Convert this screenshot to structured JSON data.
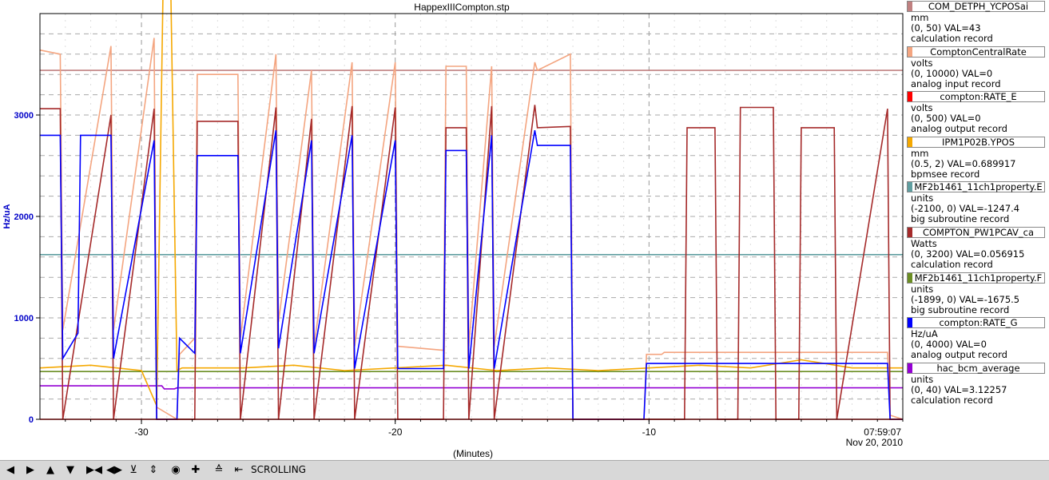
{
  "chart_data": {
    "type": "line",
    "title": "HappexIIICompton.stp",
    "xlabel": "(Minutes)",
    "ylabel": "Hz/uA",
    "xlim": [
      -34,
      0
    ],
    "ylim": [
      0,
      4000
    ],
    "x_ticks": [
      -30,
      -20,
      -10
    ],
    "y_ticks": [
      0,
      1000,
      2000,
      3000
    ],
    "time_label": "07:59:07",
    "date_label": "Nov 20, 2010",
    "grid": true,
    "legend_position": "right",
    "series": [
      {
        "name": "COM_DETPH_YCPOSai",
        "color": "#c08080",
        "y_range": [
          0,
          50
        ],
        "value": "43",
        "x": [
          -34,
          0
        ],
        "y": [
          43,
          43
        ]
      },
      {
        "name": "ComptonCentralRate",
        "color": "#f4a580",
        "y_range": [
          0,
          10000
        ],
        "value": "0",
        "x": [
          -34,
          -33.2,
          -33.1,
          -31.2,
          -31.1,
          -29.5,
          -29.4,
          -28.6,
          -28.5,
          -27.9,
          -27.8,
          -26.2,
          -26.1,
          -24.7,
          -24.6,
          -23.3,
          -23.2,
          -21.7,
          -21.6,
          -20,
          -19.9,
          -18.1,
          -18,
          -17.2,
          -17.1,
          -16.2,
          -16.1,
          -14.5,
          -14.4,
          -13.1,
          -13,
          -10.2,
          -10.1,
          -9.5,
          -9.4,
          -0.6,
          -0.5,
          0
        ],
        "y": [
          9100,
          9000,
          2200,
          9200,
          2200,
          9400,
          300,
          0,
          1600,
          2000,
          8500,
          8500,
          2000,
          9000,
          2400,
          8600,
          1800,
          8800,
          1800,
          8800,
          1800,
          1700,
          8700,
          8700,
          1800,
          8700,
          1800,
          8800,
          8600,
          9000,
          0,
          0,
          1600,
          1600,
          1650,
          1650,
          100,
          0
        ]
      },
      {
        "name": "compton:RATE_E",
        "color": "#ff0000",
        "y_range": [
          0,
          500
        ],
        "value": "0",
        "x": [
          -34,
          0
        ],
        "y": [
          0,
          0
        ]
      },
      {
        "name": "IPM1P02B.YPOS",
        "color": "#f5a800",
        "y_range": [
          0.5,
          2
        ],
        "value": "0.689917",
        "x": [
          -34,
          -32,
          -30,
          -29.4,
          -29,
          -28.6,
          -28.4,
          -26,
          -24,
          -22,
          -20,
          -18,
          -16,
          -14,
          -12,
          -10,
          -8,
          -6,
          -4,
          -2,
          0
        ],
        "y": [
          0.69,
          0.7,
          0.68,
          0.55,
          3.0,
          0.68,
          0.69,
          0.69,
          0.7,
          0.68,
          0.69,
          0.7,
          0.68,
          0.69,
          0.68,
          0.69,
          0.7,
          0.69,
          0.72,
          0.69,
          0.69
        ]
      },
      {
        "name": "MF2b1461_11ch1property.E",
        "color": "#5f9ea0",
        "y_range": [
          -2100,
          0
        ],
        "value": "-1247.4",
        "x": [
          -34,
          0
        ],
        "y": [
          -1247.4,
          -1247.4
        ]
      },
      {
        "name": "COMPTON_PW1PCAV_ca",
        "color": "#a52a2a",
        "y_range": [
          0,
          3200
        ],
        "value": "0.056915",
        "x": [
          -34,
          -33.2,
          -33.1,
          -31.2,
          -31.1,
          -29.5,
          -29.4,
          -28.6,
          -28.5,
          -27.9,
          -27.8,
          -26.2,
          -26.1,
          -24.7,
          -24.6,
          -23.3,
          -23.2,
          -21.7,
          -21.6,
          -20,
          -19.9,
          -18.1,
          -18,
          -17.2,
          -17.1,
          -16.2,
          -16.1,
          -14.5,
          -14.4,
          -13.1,
          -13,
          -8.6,
          -8.5,
          -7.4,
          -7.3,
          -6.5,
          -6.4,
          -5.1,
          -5,
          -4.1,
          -4,
          -2.7,
          -2.6,
          -0.6,
          -0.5,
          0
        ],
        "y": [
          2450,
          2450,
          0,
          2400,
          0,
          2450,
          0,
          0,
          0,
          0,
          2350,
          2350,
          0,
          2460,
          0,
          2370,
          0,
          2470,
          0,
          2460,
          0,
          0,
          2300,
          2300,
          0,
          2470,
          0,
          2480,
          2300,
          2310,
          0,
          0,
          2300,
          2300,
          0,
          0,
          2460,
          2460,
          0,
          0,
          2300,
          2300,
          0,
          2450,
          0,
          0
        ]
      },
      {
        "name": "MF2b1461_11ch1property.F",
        "color": "#6b8e23",
        "y_range": [
          -1899,
          0
        ],
        "value": "-1675.5",
        "x": [
          -34,
          0
        ],
        "y": [
          -1675.5,
          -1675.5
        ]
      },
      {
        "name": "compton:RATE_G",
        "color": "#0000ff",
        "y_range": [
          0,
          4000
        ],
        "value": "0",
        "x": [
          -34,
          -33.2,
          -33.1,
          -32.5,
          -32.4,
          -31.2,
          -31.1,
          -29.5,
          -29.4,
          -28.6,
          -28.5,
          -27.9,
          -27.8,
          -26.2,
          -26.1,
          -24.7,
          -24.6,
          -23.3,
          -23.2,
          -21.7,
          -21.6,
          -20,
          -19.9,
          -18.1,
          -18,
          -17.2,
          -17.1,
          -16.2,
          -16.1,
          -14.5,
          -14.4,
          -13.1,
          -13,
          -10.2,
          -10.1,
          -0.6,
          -0.5,
          0
        ],
        "y": [
          2800,
          2800,
          600,
          850,
          2800,
          2800,
          600,
          2750,
          0,
          0,
          800,
          650,
          2600,
          2600,
          650,
          2850,
          700,
          2750,
          650,
          2800,
          500,
          2750,
          500,
          500,
          2650,
          2650,
          500,
          2800,
          500,
          2850,
          2700,
          2700,
          0,
          0,
          550,
          550,
          0,
          0
        ]
      },
      {
        "name": "hac_bcm_average",
        "color": "#9400d3",
        "y_range": [
          0,
          40
        ],
        "value": "3.12257",
        "x": [
          -34,
          -29.2,
          -29.1,
          -28.7,
          -28.6,
          0
        ],
        "y": [
          3.3,
          3.3,
          3.0,
          3.0,
          3.1,
          3.1
        ]
      }
    ]
  },
  "legend": [
    {
      "name": "COM_DETPH_YCPOSai",
      "color": "#c08080",
      "units": "mm",
      "range_value": "(0, 50)  VAL=43",
      "record": "calculation record"
    },
    {
      "name": "ComptonCentralRate",
      "color": "#f4a580",
      "units": "volts",
      "range_value": "(0, 10000) VAL=0",
      "record": "analog input record"
    },
    {
      "name": "compton:RATE_E",
      "color": "#ff0000",
      "units": "volts",
      "range_value": "(0, 500)  VAL=0",
      "record": "analog output record"
    },
    {
      "name": "IPM1P02B.YPOS",
      "color": "#f5a800",
      "units": "mm",
      "range_value": "(0.5, 2) VAL=0.689917",
      "record": "bpmsee record"
    },
    {
      "name": "MF2b1461_11ch1property.E",
      "color": "#5f9ea0",
      "units": "units",
      "range_value": "(-2100, 0) VAL=-1247.4",
      "record": "big subroutine record"
    },
    {
      "name": "COMPTON_PW1PCAV_ca",
      "color": "#a52a2a",
      "units": "Watts",
      "range_value": "(0, 3200) VAL=0.056915",
      "record": "calculation record"
    },
    {
      "name": "MF2b1461_11ch1property.F",
      "color": "#6b8e23",
      "units": "units",
      "range_value": "(-1899, 0)  VAL=-1675.5",
      "record": "big subroutine record"
    },
    {
      "name": "compton:RATE_G",
      "color": "#0000ff",
      "units": "Hz/uA",
      "range_value": "(0, 4000) VAL=0",
      "record": "analog output record"
    },
    {
      "name": "hac_bcm_average",
      "color": "#9400d3",
      "units": "units",
      "range_value": "(0, 40) VAL=3.12257",
      "record": "calculation record"
    }
  ],
  "toolbar": {
    "buttons": [
      "arrow-left-icon",
      "arrow-right-icon",
      "arrow-up-icon",
      "arrow-down-icon",
      "compress-horizontal-icon",
      "expand-horizontal-icon",
      "compress-vertical-icon",
      "expand-vertical-icon",
      "record-icon",
      "crosshair-icon",
      "fit-icon",
      "jump-end-icon"
    ],
    "mode_label": "SCROLLING"
  }
}
